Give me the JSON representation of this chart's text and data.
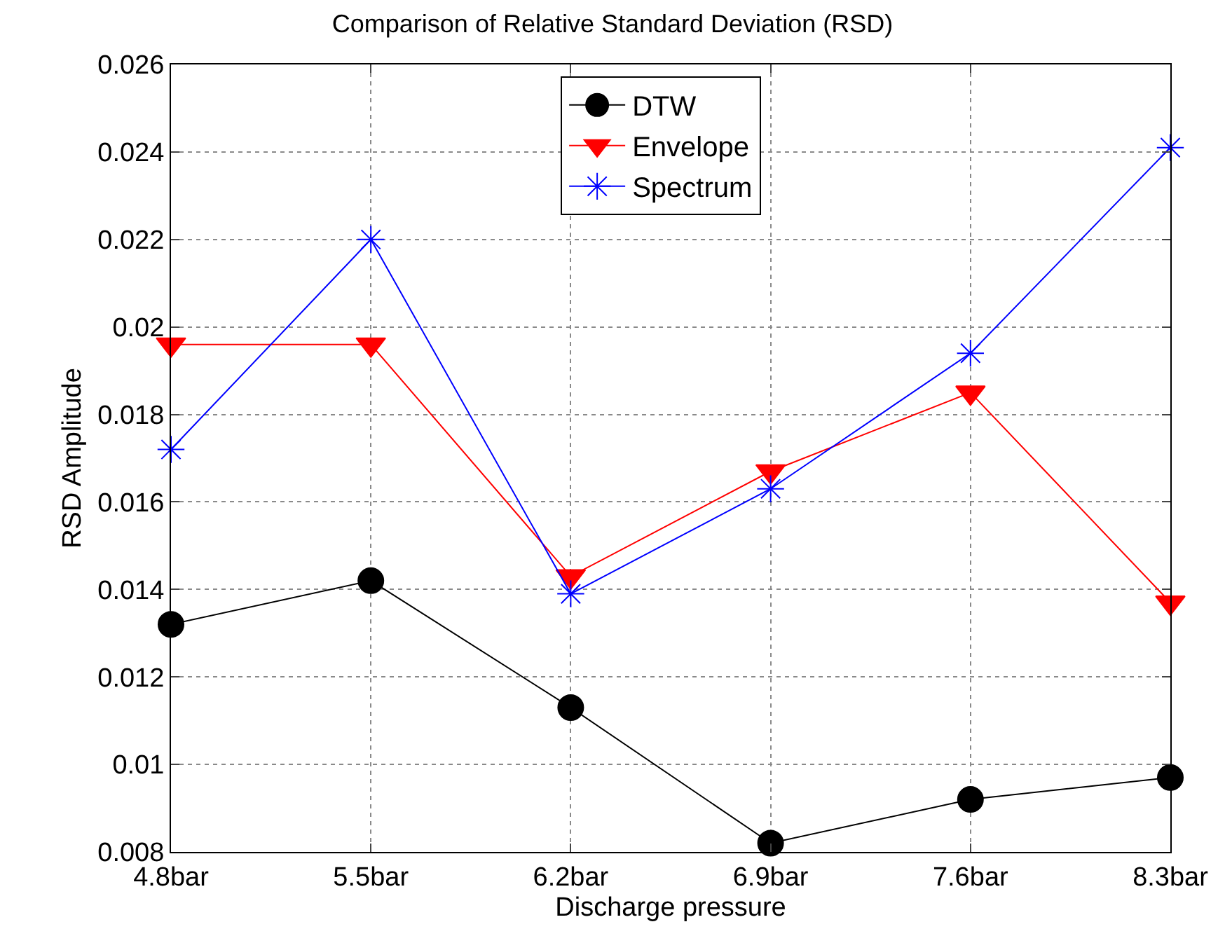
{
  "chart_data": {
    "type": "line",
    "title": "Comparison of Relative Standard Deviation (RSD)",
    "xlabel": "Discharge pressure",
    "ylabel": "RSD Amplitude",
    "categories": [
      "4.8bar",
      "5.5bar",
      "6.2bar",
      "6.9bar",
      "7.6bar",
      "8.3bar"
    ],
    "series": [
      {
        "name": "DTW",
        "color": "#000000",
        "marker": "circle",
        "values": [
          0.0132,
          0.0142,
          0.0113,
          0.0082,
          0.0092,
          0.0097
        ]
      },
      {
        "name": "Envelope",
        "color": "#ff0000",
        "marker": "triangle",
        "values": [
          0.0196,
          0.0196,
          0.0143,
          0.0167,
          0.0185,
          0.0137
        ]
      },
      {
        "name": "Spectrum",
        "color": "#0000ff",
        "marker": "cross",
        "values": [
          0.0172,
          0.022,
          0.0139,
          0.0163,
          0.0194,
          0.0241
        ]
      }
    ],
    "ylim": [
      0.008,
      0.026
    ],
    "yticks": [
      0.008,
      0.01,
      0.012,
      0.014,
      0.016,
      0.018,
      0.02,
      0.022,
      0.024,
      0.026
    ],
    "grid": true,
    "legend": "top",
    "line_style": "solid"
  }
}
